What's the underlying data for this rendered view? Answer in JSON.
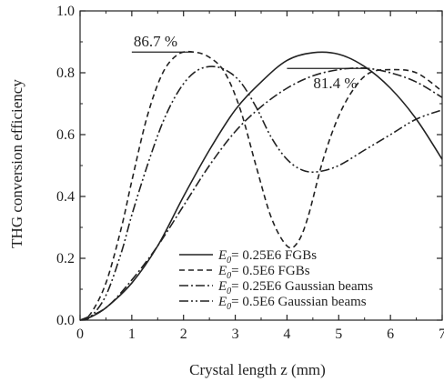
{
  "chart_data": {
    "type": "line",
    "xlabel": "Crystal length z (mm)",
    "ylabel": "THG conversion efficiency",
    "xlim": [
      0,
      7
    ],
    "ylim": [
      0,
      1.0
    ],
    "xticks": [
      "0",
      "1",
      "2",
      "3",
      "4",
      "5",
      "6",
      "7"
    ],
    "yticks": [
      "0.0",
      "0.2",
      "0.4",
      "0.6",
      "0.8",
      "1.0"
    ],
    "grid": false,
    "legend_position": "bottom-right",
    "series": [
      {
        "name": "E0= 0.25E6 FGBs",
        "legend_main": "E",
        "legend_sub": "0",
        "legend_rest": "= 0.25E6  FGBs",
        "dash": "solid",
        "x": [
          0,
          0.2,
          0.5,
          1.0,
          1.5,
          2.0,
          2.5,
          3.0,
          3.5,
          4.0,
          4.5,
          5.0,
          5.5,
          6.0,
          6.5,
          7.0
        ],
        "y": [
          0,
          0.01,
          0.04,
          0.12,
          0.24,
          0.4,
          0.55,
          0.68,
          0.77,
          0.84,
          0.865,
          0.86,
          0.82,
          0.75,
          0.65,
          0.52
        ]
      },
      {
        "name": "E0= 0.5E6 FGBs",
        "legend_main": "E",
        "legend_sub": "0",
        "legend_rest": "= 0.5E6  FGBs",
        "dash": "6,4",
        "x": [
          0,
          0.2,
          0.5,
          0.8,
          1.0,
          1.3,
          1.6,
          1.9,
          2.2,
          2.5,
          2.8,
          3.1,
          3.4,
          3.7,
          4.0,
          4.2,
          4.4,
          4.7,
          5.0,
          5.3,
          5.6,
          6.0,
          6.5,
          7.0
        ],
        "y": [
          0,
          0.02,
          0.12,
          0.3,
          0.45,
          0.66,
          0.8,
          0.86,
          0.867,
          0.85,
          0.8,
          0.68,
          0.5,
          0.33,
          0.24,
          0.25,
          0.33,
          0.52,
          0.66,
          0.75,
          0.8,
          0.81,
          0.8,
          0.74
        ]
      },
      {
        "name": "E0= 0.25E6 Gaussian beams",
        "legend_main": "E",
        "legend_sub": "0",
        "legend_rest": "= 0.25E6  Gaussian beams",
        "dash": "10,3,2,3",
        "x": [
          0,
          0.5,
          1.0,
          1.5,
          2.0,
          2.5,
          3.0,
          3.5,
          4.0,
          4.5,
          5.0,
          5.5,
          6.0,
          6.5,
          7.0
        ],
        "y": [
          0,
          0.04,
          0.13,
          0.24,
          0.37,
          0.5,
          0.61,
          0.69,
          0.75,
          0.79,
          0.81,
          0.815,
          0.8,
          0.77,
          0.72
        ]
      },
      {
        "name": "E0= 0.5E6 Gaussian beams",
        "legend_main": "E",
        "legend_sub": "0",
        "legend_rest": "= 0.5E6  Gaussian beams",
        "dash": "10,3,2,3,2,3",
        "x": [
          0,
          0.2,
          0.5,
          0.8,
          1.0,
          1.3,
          1.6,
          1.9,
          2.2,
          2.5,
          2.8,
          3.1,
          3.4,
          3.7,
          4.0,
          4.3,
          4.6,
          5.0,
          5.5,
          6.0,
          6.5,
          7.0
        ],
        "y": [
          0,
          0.01,
          0.08,
          0.22,
          0.34,
          0.5,
          0.64,
          0.74,
          0.8,
          0.82,
          0.81,
          0.77,
          0.69,
          0.59,
          0.52,
          0.485,
          0.48,
          0.5,
          0.55,
          0.6,
          0.65,
          0.68
        ]
      }
    ],
    "annotations": [
      {
        "text": "86.7 %",
        "x": 2.2,
        "y": 0.867,
        "line_x": [
          1.0,
          2.2
        ]
      },
      {
        "text": "81.4 %",
        "x": 5.6,
        "y": 0.814,
        "line_x": [
          4.0,
          5.6
        ]
      }
    ]
  }
}
